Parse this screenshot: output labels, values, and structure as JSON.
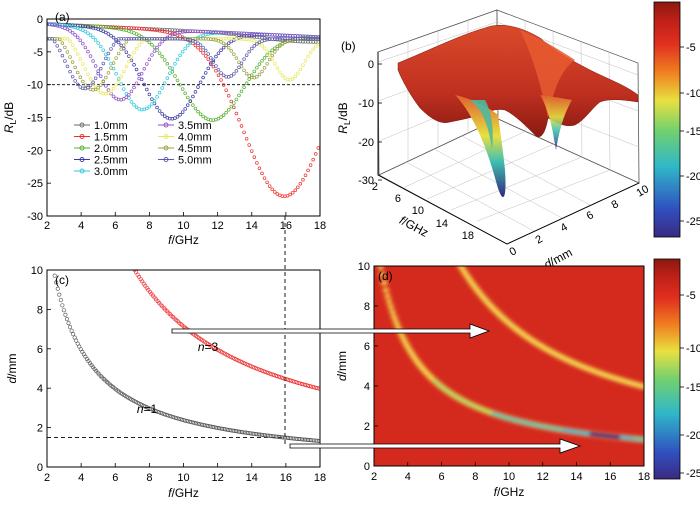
{
  "chart_data": [
    {
      "panel": "(a)",
      "type": "line",
      "xlabel_italic": "f",
      "xlabel_unit": "/GHz",
      "ylabel_base": "R",
      "ylabel_sub": "L",
      "ylabel_unit": "/dB",
      "xlim": [
        2,
        18
      ],
      "ylim": [
        -30,
        0
      ],
      "xticks": [
        2,
        4,
        6,
        8,
        10,
        12,
        14,
        16,
        18
      ],
      "yticks": [
        0,
        -5,
        -10,
        -15,
        -20,
        -25,
        -30
      ],
      "reference_line_dB": -10,
      "series": [
        {
          "name": "1.0mm",
          "color": "#6b6b6b",
          "marker": "square",
          "min_freq": 17.8,
          "min_db": -3.5
        },
        {
          "name": "1.5mm",
          "color": "#ee3030",
          "marker": "circle",
          "min_freq": 15.9,
          "min_db": -27
        },
        {
          "name": "2.0mm",
          "color": "#55b030",
          "marker": "triangle-up",
          "min_freq": 11.7,
          "min_db": -15.4
        },
        {
          "name": "2.5mm",
          "color": "#3a3aa8",
          "marker": "triangle-down",
          "min_freq": 9.3,
          "min_db": -15.2
        },
        {
          "name": "3.0mm",
          "color": "#30c8d8",
          "marker": "diamond",
          "min_freq": 7.6,
          "min_db": -13.8
        },
        {
          "name": "3.5mm",
          "color": "#9050c8",
          "marker": "triangle-left",
          "min_freq": 6.3,
          "min_db": -12.3
        },
        {
          "name": "4.0mm",
          "color": "#e8e860",
          "marker": "triangle-right",
          "min_freq": 5.4,
          "min_db": -11.4
        },
        {
          "name": "4.5mm",
          "color": "#9aa040",
          "marker": "hexagon",
          "min_freq": 4.7,
          "min_db": -10.8
        },
        {
          "name": "5.0mm",
          "color": "#5a5ab0",
          "marker": "star",
          "min_freq": 4.2,
          "min_db": -10.6
        }
      ]
    },
    {
      "panel": "(b)",
      "type": "surface3d",
      "xlabel_italic": "f",
      "xlabel_unit": "/GHz",
      "ylabel_italic": "d",
      "ylabel_unit": "/mm",
      "zlabel_base": "R",
      "zlabel_sub": "L",
      "zlabel_unit": "/dB",
      "fticks": [
        2,
        6,
        10,
        14,
        18
      ],
      "dticks": [
        0,
        2,
        4,
        6,
        8,
        10
      ],
      "zticks": [
        0,
        -10,
        -20,
        -30
      ]
    },
    {
      "panel": "(c)",
      "type": "line",
      "xlabel_italic": "f",
      "xlabel_unit": "/GHz",
      "ylabel_italic": "d",
      "ylabel_unit": "/mm",
      "xlim": [
        2,
        18
      ],
      "ylim": [
        0,
        10
      ],
      "xticks": [
        2,
        4,
        6,
        8,
        10,
        12,
        14,
        16,
        18
      ],
      "yticks": [
        0,
        2,
        4,
        6,
        8,
        10
      ],
      "marker_line_freq": 15.9,
      "marker_line_d": 1.5,
      "series": [
        {
          "name_italic": "n",
          "name_rest": "=1",
          "color": "#555555",
          "n": 1,
          "constant": 23.8
        },
        {
          "name_italic": "n",
          "name_rest": "=3",
          "color": "#ee3030",
          "n": 3,
          "constant": 71.4
        }
      ]
    },
    {
      "panel": "(d)",
      "type": "heatmap",
      "xlabel_italic": "f",
      "xlabel_unit": "/GHz",
      "ylabel_italic": "d",
      "ylabel_unit": "/mm",
      "xlim": [
        2,
        18
      ],
      "ylim": [
        0,
        10
      ],
      "xticks": [
        2,
        4,
        6,
        8,
        10,
        12,
        14,
        16,
        18
      ],
      "yticks": [
        0,
        2,
        4,
        6,
        8,
        10
      ],
      "bands": [
        {
          "n": 1,
          "constant": 23.8
        },
        {
          "n": 3,
          "constant": 71.4
        }
      ]
    },
    {
      "type": "colorbar",
      "ticks": [
        -5,
        -10,
        -15,
        -20,
        -25
      ],
      "colormap": [
        "#3a2a80",
        "#3050c0",
        "#30b8c8",
        "#70d070",
        "#e8e040",
        "#f08020",
        "#e03020",
        "#c02018",
        "#8a1a10"
      ]
    }
  ]
}
